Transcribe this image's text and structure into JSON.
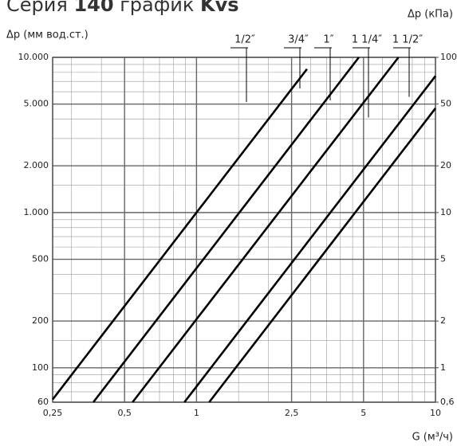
{
  "chart_data": {
    "type": "line",
    "title_parts": [
      "Серия",
      "140",
      "график",
      "Kvs"
    ],
    "y_label": "Δp (мм вод.ст.)",
    "y2_label": "Δp (кПа)",
    "x_label": "G (м³/ч)",
    "log_x": true,
    "log_y": true,
    "grid": true,
    "xlim": [
      0.25,
      10
    ],
    "xticks": [
      {
        "value": 0.25,
        "label": "0,25"
      },
      {
        "value": 0.5,
        "label": "0,5"
      },
      1,
      {
        "value": 2.5,
        "label": "2,5"
      },
      5,
      10
    ],
    "x_minor_ticks": [
      0.3,
      0.4,
      0.6,
      0.7,
      0.8,
      0.9,
      1.5,
      2,
      3,
      3.5,
      4,
      4.5,
      6,
      7,
      8,
      9
    ],
    "ylim": [
      60,
      10000
    ],
    "yticks": [
      60,
      100,
      200,
      500,
      {
        "value": 1000,
        "label": "1.000"
      },
      {
        "value": 2000,
        "label": "2.000"
      },
      {
        "value": 5000,
        "label": "5.000"
      },
      {
        "value": 10000,
        "label": "10.000"
      }
    ],
    "y_minor_ticks": [
      70,
      80,
      90,
      150,
      300,
      400,
      600,
      700,
      800,
      900,
      1500,
      3000,
      4000,
      6000,
      7000,
      8000,
      9000
    ],
    "y2lim": [
      0.6,
      100
    ],
    "y2ticks": [
      {
        "value": 0.6,
        "label": "0,6"
      },
      1,
      2,
      5,
      10,
      20,
      50,
      100
    ],
    "series": [
      {
        "name": "1/2″",
        "color": "#000000",
        "x": [
          0.25,
          2.9
        ],
        "values": [
          62.5,
          8410
        ]
      },
      {
        "name": "3/4″",
        "color": "#000000",
        "x": [
          0.37,
          4.78
        ],
        "values": [
          60,
          10000
        ]
      },
      {
        "name": "1″",
        "color": "#000000",
        "x": [
          0.54,
          7.0
        ],
        "values": [
          60,
          10000
        ]
      },
      {
        "name": "1 1/4″",
        "color": "#000000",
        "x": [
          0.89,
          10
        ],
        "values": [
          60,
          7580
        ]
      },
      {
        "name": "1 1/2″",
        "color": "#000000",
        "x": [
          1.13,
          10
        ],
        "values": [
          60,
          4700
        ]
      }
    ]
  }
}
